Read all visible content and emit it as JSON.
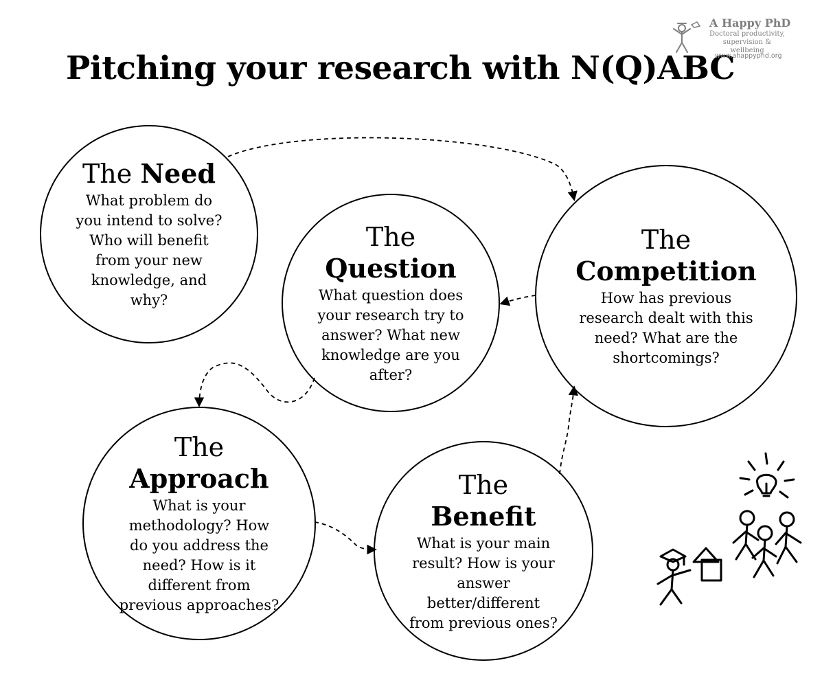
{
  "title": "Pitching your research with N(Q)ABC",
  "logo": {
    "title": "A Happy PhD",
    "tagline": "Doctoral productivity, supervision & wellbeing",
    "url": "www.ahappyphd.org"
  },
  "nodes": {
    "need": {
      "prefix": "The",
      "name": "Need",
      "description": "What problem do you intend to solve? Who will benefit from your new knowledge, and why?"
    },
    "question": {
      "prefix": "The",
      "name": "Question",
      "description": "What question does your research try to answer? What new knowledge are you after?"
    },
    "competition": {
      "prefix": "The",
      "name": "Competition",
      "description": "How has previous research dealt with this need? What are the shortcomings?"
    },
    "approach": {
      "prefix": "The",
      "name": "Approach",
      "description": "What is your methodology? How do you address the need? How is it different from previous approaches?"
    },
    "benefit": {
      "prefix": "The",
      "name": "Benefit",
      "description": "What is your main result? How is your answer better/different from previous ones?"
    }
  },
  "flow": [
    {
      "from": "need",
      "to": "competition"
    },
    {
      "from": "competition",
      "to": "question"
    },
    {
      "from": "question",
      "to": "approach"
    },
    {
      "from": "approach",
      "to": "benefit"
    },
    {
      "from": "benefit",
      "to": "competition"
    }
  ],
  "colors": {
    "ink": "#000000",
    "logo_gray": "#808080",
    "background": "#ffffff"
  }
}
